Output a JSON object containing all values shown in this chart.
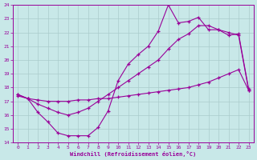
{
  "xlabel": "Windchill (Refroidissement éolien,°C)",
  "bg_color": "#c8e8e8",
  "grid_color": "#aacccc",
  "line_color": "#990099",
  "xlim": [
    -0.5,
    23.5
  ],
  "ylim": [
    14,
    24
  ],
  "xticks": [
    0,
    1,
    2,
    3,
    4,
    5,
    6,
    7,
    8,
    9,
    10,
    11,
    12,
    13,
    14,
    15,
    16,
    17,
    18,
    19,
    20,
    21,
    22,
    23
  ],
  "yticks": [
    14,
    15,
    16,
    17,
    18,
    19,
    20,
    21,
    22,
    23,
    24
  ],
  "line1_x": [
    0,
    1,
    2,
    3,
    4,
    5,
    6,
    7,
    8,
    9,
    10,
    11,
    12,
    13,
    14,
    15,
    16,
    17,
    18,
    19,
    20,
    21,
    22,
    23
  ],
  "line1_y": [
    17.5,
    17.2,
    16.2,
    15.5,
    14.7,
    14.5,
    14.5,
    14.5,
    15.1,
    16.3,
    18.5,
    19.7,
    20.4,
    21.0,
    22.1,
    24.0,
    22.7,
    22.8,
    23.1,
    22.2,
    22.2,
    21.8,
    21.9,
    17.9
  ],
  "line2_x": [
    0,
    1,
    2,
    3,
    4,
    5,
    6,
    7,
    8,
    9,
    10,
    11,
    12,
    13,
    14,
    15,
    16,
    17,
    18,
    19,
    20,
    21,
    22,
    23
  ],
  "line2_y": [
    17.5,
    17.2,
    16.8,
    16.5,
    16.2,
    16.0,
    16.2,
    16.5,
    17.0,
    17.5,
    18.0,
    18.5,
    19.0,
    19.5,
    20.0,
    20.8,
    21.5,
    21.9,
    22.5,
    22.5,
    22.2,
    22.0,
    21.8,
    17.8
  ],
  "line3_x": [
    0,
    1,
    2,
    3,
    4,
    5,
    6,
    7,
    8,
    9,
    10,
    11,
    12,
    13,
    14,
    15,
    16,
    17,
    18,
    19,
    20,
    21,
    22,
    23
  ],
  "line3_y": [
    17.4,
    17.2,
    17.1,
    17.0,
    17.0,
    17.0,
    17.1,
    17.1,
    17.2,
    17.2,
    17.3,
    17.4,
    17.5,
    17.6,
    17.7,
    17.8,
    17.9,
    18.0,
    18.2,
    18.4,
    18.7,
    19.0,
    19.3,
    17.8
  ]
}
